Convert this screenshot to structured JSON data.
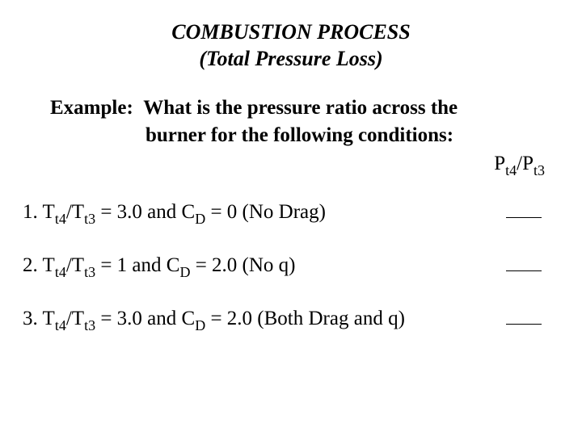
{
  "title_line1": "COMBUSTION PROCESS",
  "title_line2": "(Total Pressure Loss)",
  "example_prefix": "Example:",
  "example_q1": "What is the pressure ratio across the",
  "example_q2": "burner for the following conditions:",
  "ratio_P": "P",
  "ratio_sub_t4": "t4",
  "ratio_slash": "/P",
  "ratio_sub_t3": "t3",
  "items": [
    {
      "num": "1.  T",
      "sub1": "t4",
      "mid1": "/T",
      "sub2": "t3",
      "mid2": " = 3.0 and C",
      "sub3": "D",
      "tail": " = 0  (No Drag)"
    },
    {
      "num": "2.  T",
      "sub1": "t4",
      "mid1": "/T",
      "sub2": "t3",
      "mid2": " = 1 and C",
      "sub3": "D",
      "tail": " = 2.0 (No q)"
    },
    {
      "num": "3.  T",
      "sub1": "t4",
      "mid1": "/T",
      "sub2": "t3",
      "mid2": " = 3.0 and C",
      "sub3": "D",
      "tail": " = 2.0 (Both Drag and q)"
    }
  ]
}
